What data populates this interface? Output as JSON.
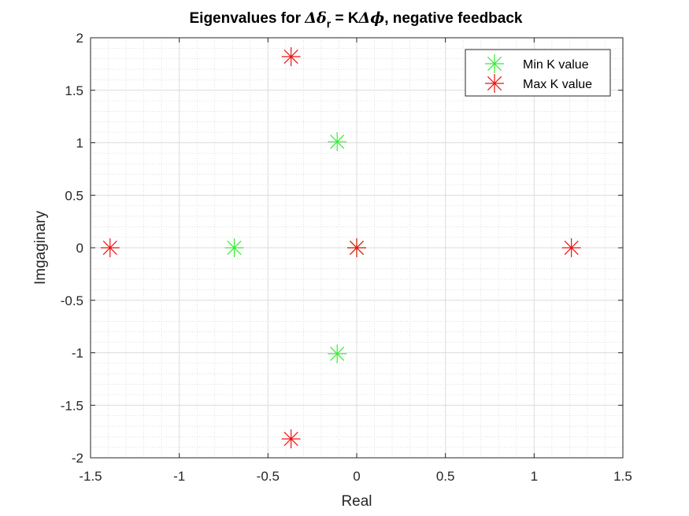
{
  "chart_data": {
    "type": "scatter",
    "title": {
      "prefix": "Eigenvalues for ",
      "sym_delta": "Δ",
      "sym_delta_small": "δ",
      "subscript": "r",
      "middle": " = K",
      "sym_phi": "ϕ",
      "suffix": ", negative feedback"
    },
    "xlabel": "Real",
    "ylabel": "Imgaginary",
    "xlim": [
      -1.5,
      1.5
    ],
    "ylim": [
      -2,
      2
    ],
    "xticks": [
      -1.5,
      -1,
      -0.5,
      0,
      0.5,
      1,
      1.5
    ],
    "xtick_labels": [
      "-1.5",
      "-1",
      "-0.5",
      "0",
      "0.5",
      "1",
      "1.5"
    ],
    "yticks": [
      -2,
      -1.5,
      -1,
      -0.5,
      0,
      0.5,
      1,
      1.5,
      2
    ],
    "ytick_labels": [
      "-2",
      "-1.5",
      "-1",
      "-0.5",
      "0",
      "0.5",
      "1",
      "1.5",
      "2"
    ],
    "grid": true,
    "minor_grid": true,
    "legend_position": "top-right",
    "marker": "asterisk",
    "series": [
      {
        "name": "Min K value",
        "color": "#33ee33",
        "points": [
          {
            "x": -0.11,
            "y": 1.01
          },
          {
            "x": -0.69,
            "y": 0.0
          },
          {
            "x": 0.0,
            "y": 0.0
          },
          {
            "x": -0.11,
            "y": -1.01
          }
        ]
      },
      {
        "name": "Max K value",
        "color": "#ee1111",
        "points": [
          {
            "x": -0.37,
            "y": 1.82
          },
          {
            "x": -1.39,
            "y": 0.0
          },
          {
            "x": 0.0,
            "y": 0.0
          },
          {
            "x": 1.21,
            "y": 0.0
          },
          {
            "x": -0.37,
            "y": -1.82
          }
        ]
      }
    ]
  }
}
